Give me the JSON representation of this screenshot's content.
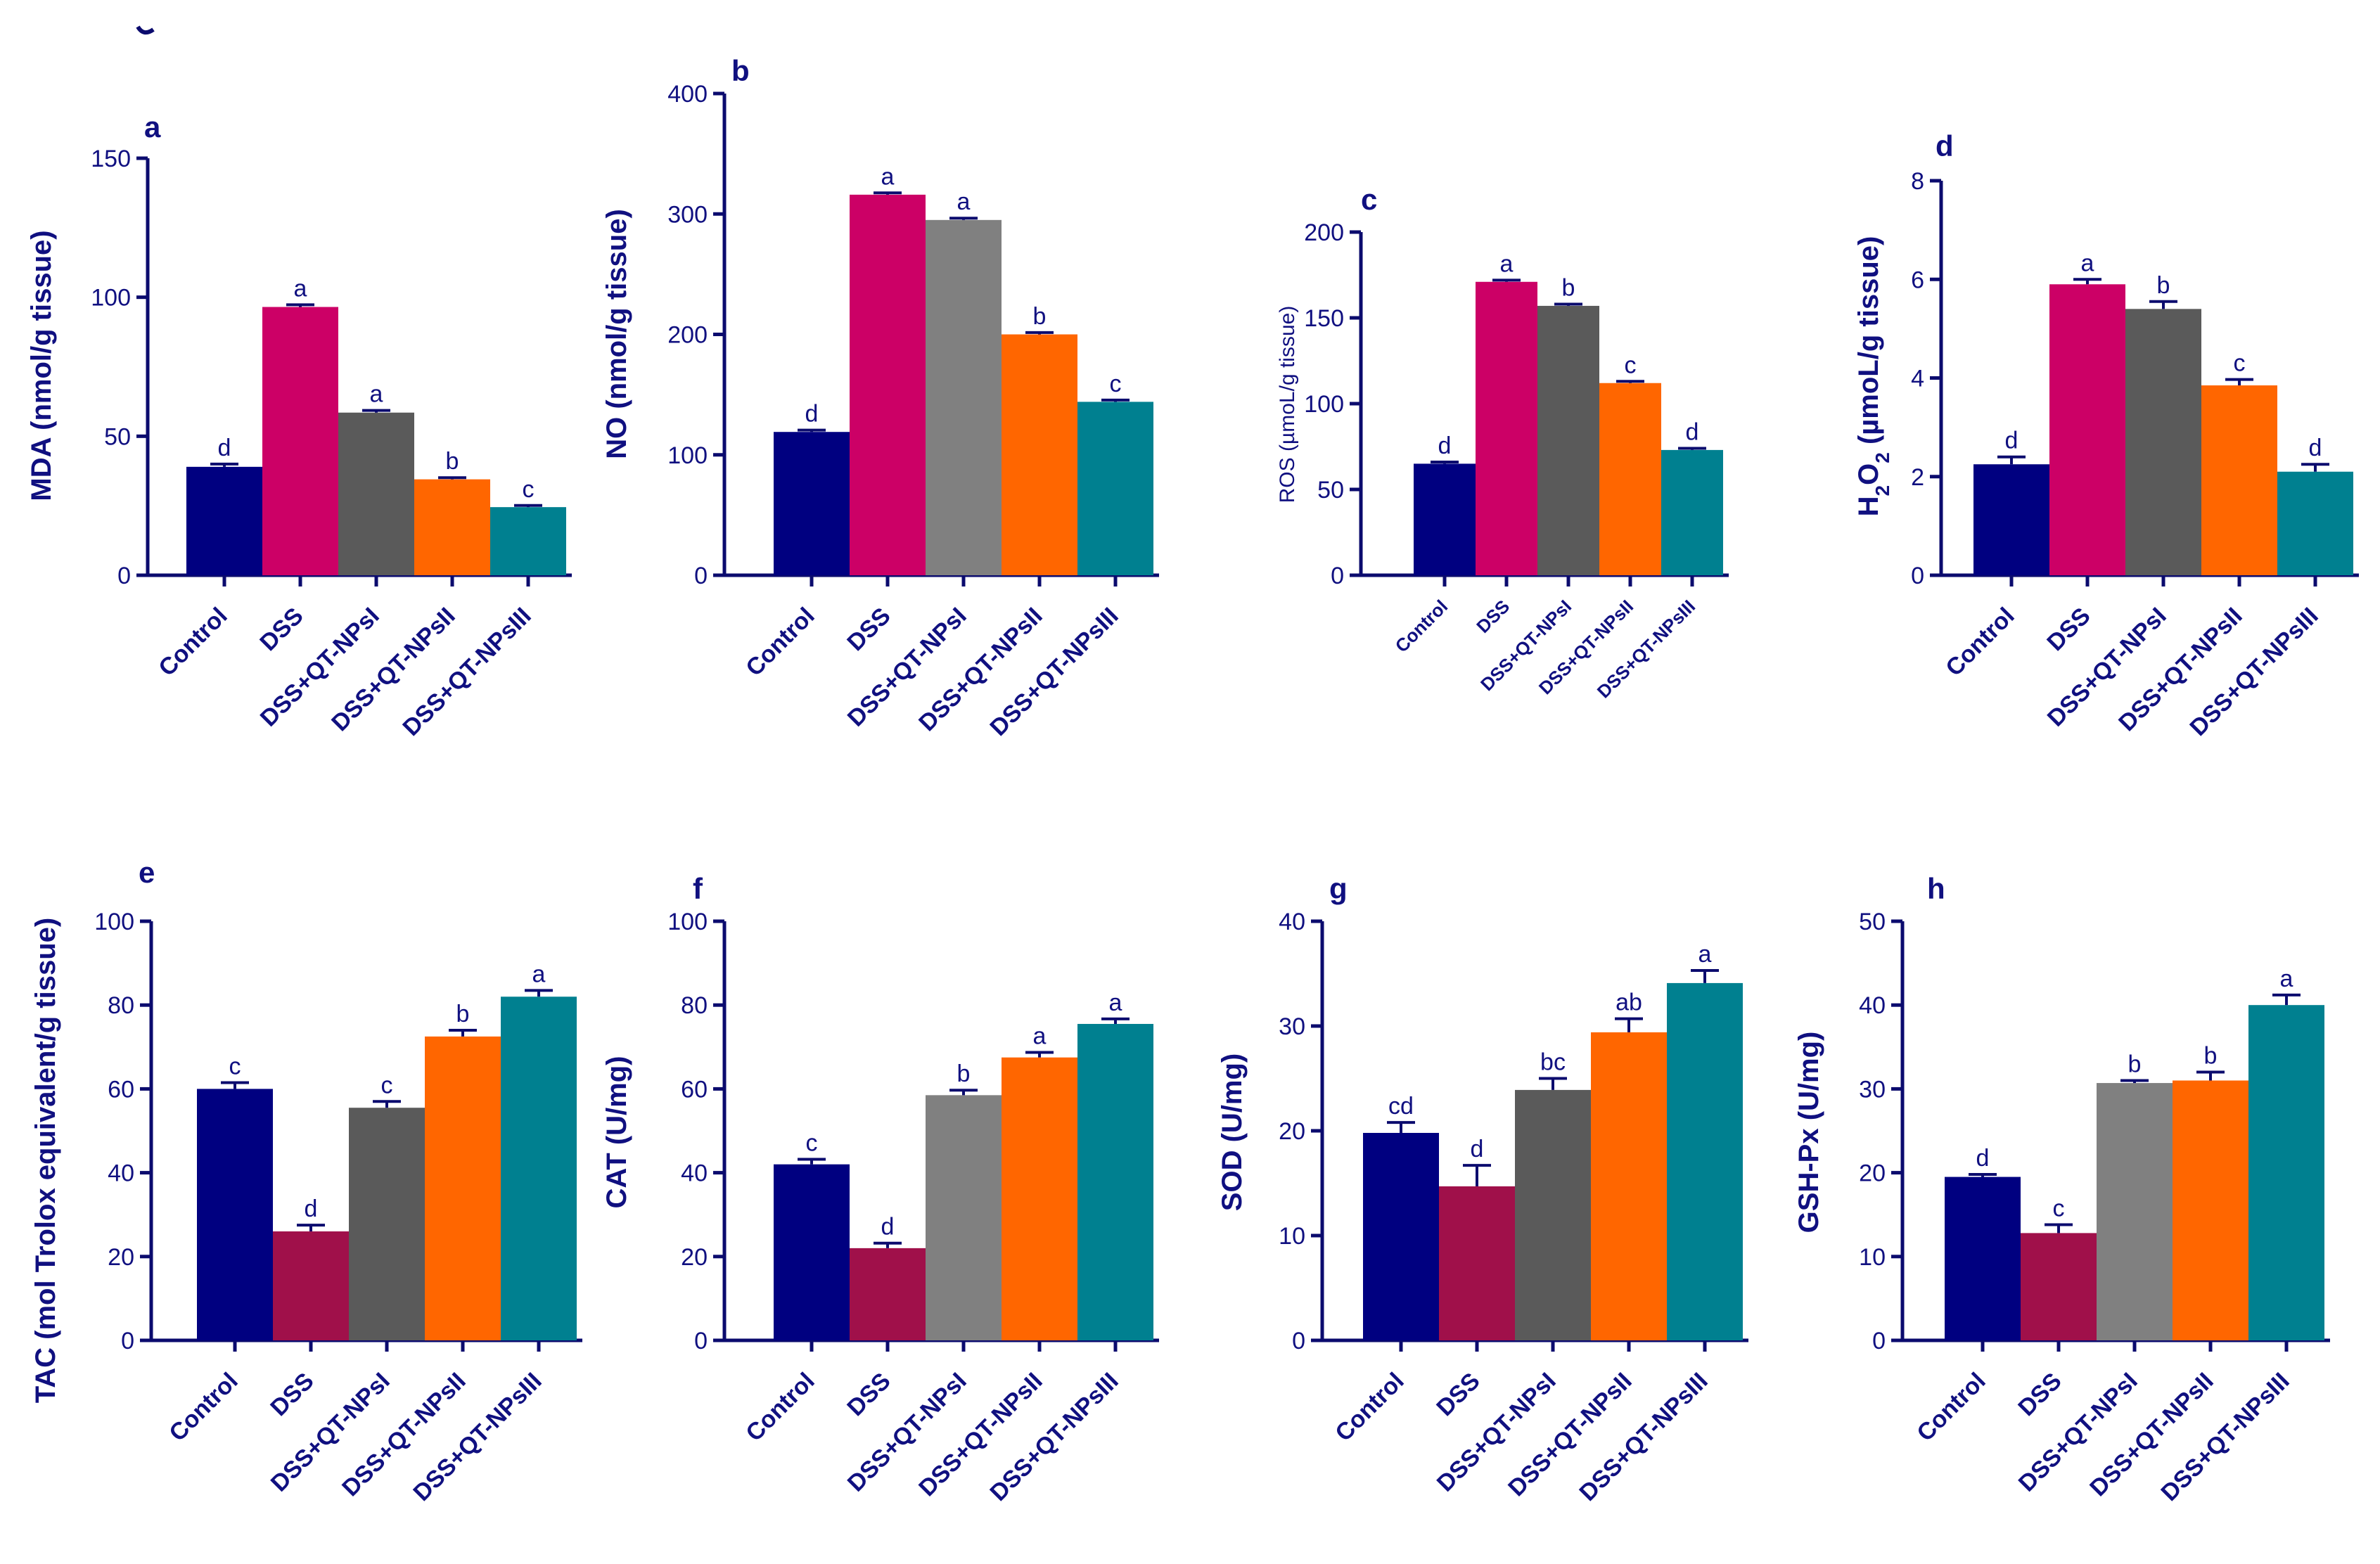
{
  "colors": {
    "axis": "#0b0b6e",
    "text": "#101080",
    "errbar": "#0b0b6e"
  },
  "chart_data": [
    {
      "id": "a",
      "type": "bar",
      "panel_letter": "a",
      "ylabel": "MDA (nmol/g tissue)",
      "categories": [
        "Control",
        "DSS",
        "DSS+QT-NPsI",
        "DSS+QT-NPsII",
        "DSS+QT-NPsIII"
      ],
      "values": [
        39,
        96.5,
        58.5,
        34.5,
        24.5
      ],
      "errors": [
        1,
        0.8,
        0.8,
        0.6,
        0.6
      ],
      "letters": [
        "d",
        "a",
        "a",
        "b",
        "c"
      ],
      "colors": [
        "#000080",
        "#CC0066",
        "#5A5A5A",
        "#FF6600",
        "#008090"
      ],
      "ylim": [
        0,
        150
      ],
      "yticks": [
        0,
        50,
        100,
        150
      ]
    },
    {
      "id": "b",
      "type": "bar",
      "panel_letter": "b",
      "ylabel": "NO (nmol/g tissue)",
      "categories": [
        "Control",
        "DSS",
        "DSS+QT-NPsI",
        "DSS+QT-NPsII",
        "DSS+QT-NPsIII"
      ],
      "values": [
        119,
        316,
        295,
        200,
        144
      ],
      "errors": [
        1.5,
        1.5,
        1.5,
        1.5,
        1.5
      ],
      "letters": [
        "d",
        "a",
        "a",
        "b",
        "c"
      ],
      "colors": [
        "#000080",
        "#CC0066",
        "#808080",
        "#FF6600",
        "#008090"
      ],
      "ylim": [
        0,
        400
      ],
      "yticks": [
        0,
        100,
        200,
        300,
        400
      ]
    },
    {
      "id": "c",
      "type": "bar",
      "panel_letter": "c",
      "ylabel": "ROS (µmoL/g tissue)",
      "categories": [
        "Control",
        "DSS",
        "DSS+QT-NPsI",
        "DSS+QT-NPsII",
        "DSS+QT-NPsIII"
      ],
      "values": [
        65,
        171,
        157,
        112,
        73
      ],
      "errors": [
        1,
        1,
        1,
        1,
        1
      ],
      "letters": [
        "d",
        "a",
        "b",
        "c",
        "d"
      ],
      "colors": [
        "#000080",
        "#CC0066",
        "#5A5A5A",
        "#FF6600",
        "#008090"
      ],
      "ylim": [
        0,
        200
      ],
      "yticks": [
        0,
        50,
        100,
        150,
        200
      ]
    },
    {
      "id": "d",
      "type": "bar",
      "panel_letter": "d",
      "ylabel": "H2O2 (µmoL/g tissue)",
      "categories": [
        "Control",
        "DSS",
        "DSS+QT-NPsI",
        "DSS+QT-NPsII",
        "DSS+QT-NPsIII"
      ],
      "values": [
        2.25,
        5.9,
        5.4,
        3.85,
        2.1
      ],
      "errors": [
        0.15,
        0.1,
        0.15,
        0.12,
        0.15
      ],
      "letters": [
        "d",
        "a",
        "b",
        "c",
        "d"
      ],
      "colors": [
        "#000080",
        "#CC0066",
        "#5A5A5A",
        "#FF6600",
        "#008090"
      ],
      "ylim": [
        0,
        8
      ],
      "yticks": [
        0,
        2,
        4,
        6,
        8
      ]
    },
    {
      "id": "e",
      "type": "bar",
      "panel_letter": "e",
      "ylabel": "TAC (mol Trolox equivalent/g tissue)",
      "categories": [
        "Control",
        "DSS",
        "DSS+QT-NPsI",
        "DSS+QT-NPsII",
        "DSS+QT-NPsIII"
      ],
      "values": [
        60,
        26,
        55.5,
        72.5,
        82
      ],
      "errors": [
        1.5,
        1.5,
        1.5,
        1.5,
        1.5
      ],
      "letters": [
        "c",
        "d",
        "c",
        "b",
        "a"
      ],
      "colors": [
        "#000080",
        "#A0104A",
        "#5A5A5A",
        "#FF6600",
        "#008090"
      ],
      "ylim": [
        0,
        100
      ],
      "yticks": [
        0,
        20,
        40,
        60,
        80,
        100
      ]
    },
    {
      "id": "f",
      "type": "bar",
      "panel_letter": "f",
      "ylabel": "CAT (U/mg)",
      "categories": [
        "Control",
        "DSS",
        "DSS+QT-NPsI",
        "DSS+QT-NPsII",
        "DSS+QT-NPsIII"
      ],
      "values": [
        42,
        22,
        58.5,
        67.5,
        75.5
      ],
      "errors": [
        1.2,
        1.2,
        1.2,
        1.2,
        1.2
      ],
      "letters": [
        "c",
        "d",
        "b",
        "a",
        "a"
      ],
      "colors": [
        "#000080",
        "#A0104A",
        "#808080",
        "#FF6600",
        "#008090"
      ],
      "ylim": [
        0,
        100
      ],
      "yticks": [
        0,
        20,
        40,
        60,
        80,
        100
      ]
    },
    {
      "id": "g",
      "type": "bar",
      "panel_letter": "g",
      "ylabel": "SOD (U/mg)",
      "categories": [
        "Control",
        "DSS",
        "DSS+QT-NPsI",
        "DSS+QT-NPsII",
        "DSS+QT-NPsIII"
      ],
      "values": [
        19.8,
        14.7,
        23.9,
        29.4,
        34.1
      ],
      "errors": [
        1.0,
        2.0,
        1.1,
        1.3,
        1.2
      ],
      "letters": [
        "cd",
        "d",
        "bc",
        "ab",
        "a"
      ],
      "colors": [
        "#000080",
        "#A0104A",
        "#5A5A5A",
        "#FF6600",
        "#008090"
      ],
      "ylim": [
        0,
        40
      ],
      "yticks": [
        0,
        10,
        20,
        30,
        40
      ]
    },
    {
      "id": "h",
      "type": "bar",
      "panel_letter": "h",
      "ylabel": "GSH-Px (U/mg)",
      "categories": [
        "Control",
        "DSS",
        "DSS+QT-NPsI",
        "DSS+QT-NPsII",
        "DSS+QT-NPsIII"
      ],
      "values": [
        19.5,
        12.8,
        30.7,
        31,
        40
      ],
      "errors": [
        0.3,
        1.0,
        0.3,
        1.0,
        1.2
      ],
      "letters": [
        "d",
        "c",
        "b",
        "b",
        "a"
      ],
      "colors": [
        "#000080",
        "#A0104A",
        "#808080",
        "#FF6600",
        "#008090"
      ],
      "ylim": [
        0,
        50
      ],
      "yticks": [
        0,
        10,
        20,
        30,
        40,
        50
      ]
    }
  ]
}
